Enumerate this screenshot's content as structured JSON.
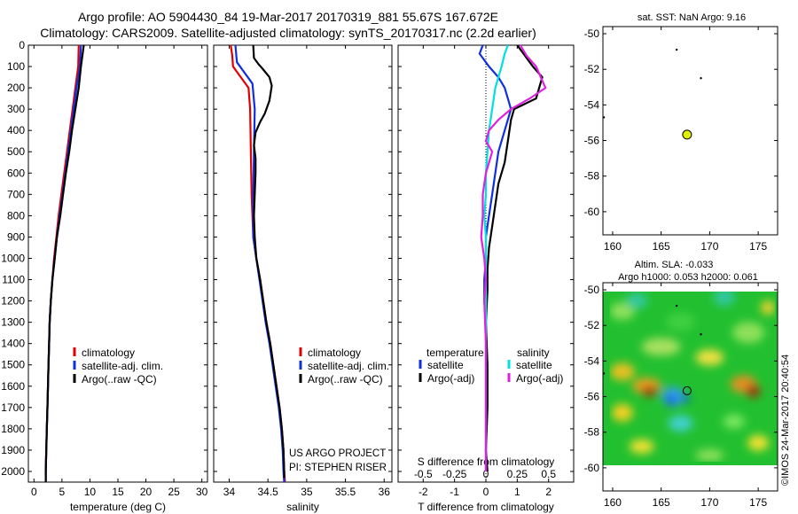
{
  "header": {
    "line1": "Argo profile: AO 5904430_84 19-Mar-2017 20170319_881 55.67S 167.672E",
    "line2": "Climatology: CARS2009. Satellite-adjusted climatology: synTS_20170317.nc (2.2d earlier)"
  },
  "credits": {
    "project": "US ARGO PROJECT",
    "pi": "PI: STEPHEN RISER",
    "imos_stamp": "©IMOS 24-Mar-2017 20:40:54"
  },
  "colors": {
    "climatology": "#e00000",
    "satellite": "#1030e0",
    "argo": "#000000",
    "satellite_salinity": "#00e0e0",
    "argo_salinity": "#e020e0",
    "marker": "#e0f000"
  },
  "chart_data": [
    {
      "type": "line",
      "panel": "temperature",
      "xlabel": "temperature (deg C)",
      "ylabel": "",
      "xlim": [
        -1,
        31
      ],
      "ylim": [
        2050,
        0
      ],
      "xticks": [
        "0",
        "5",
        "10",
        "15",
        "20",
        "25",
        "30"
      ],
      "yticks": [
        "0",
        "100",
        "200",
        "300",
        "400",
        "500",
        "600",
        "700",
        "800",
        "900",
        "1000",
        "1100",
        "1200",
        "1300",
        "1400",
        "1500",
        "1600",
        "1700",
        "1800",
        "1900",
        "2000"
      ],
      "legend": [
        "climatology",
        "satellite-adj. clim.",
        "Argo(..raw -QC)"
      ],
      "series": [
        {
          "name": "climatology",
          "color": "#e00000",
          "points": [
            [
              8.0,
              0
            ],
            [
              7.9,
              100
            ],
            [
              7.4,
              200
            ],
            [
              6.9,
              300
            ],
            [
              6.4,
              400
            ],
            [
              5.9,
              500
            ],
            [
              5.4,
              600
            ],
            [
              4.9,
              700
            ],
            [
              4.4,
              800
            ],
            [
              4.0,
              900
            ],
            [
              3.6,
              1000
            ],
            [
              3.3,
              1100
            ],
            [
              3.0,
              1200
            ],
            [
              2.8,
              1300
            ],
            [
              2.7,
              1400
            ],
            [
              2.6,
              1500
            ],
            [
              2.5,
              1600
            ],
            [
              2.4,
              1700
            ],
            [
              2.3,
              1800
            ],
            [
              2.2,
              1900
            ],
            [
              2.1,
              2000
            ],
            [
              2.1,
              2050
            ]
          ]
        },
        {
          "name": "satellite-adj. clim.",
          "color": "#1030e0",
          "points": [
            [
              8.4,
              0
            ],
            [
              8.2,
              100
            ],
            [
              7.6,
              200
            ],
            [
              7.1,
              300
            ],
            [
              6.6,
              400
            ],
            [
              6.1,
              500
            ],
            [
              5.6,
              600
            ],
            [
              5.1,
              700
            ],
            [
              4.6,
              800
            ],
            [
              4.1,
              900
            ],
            [
              3.7,
              1000
            ],
            [
              3.3,
              1100
            ],
            [
              3.0,
              1200
            ],
            [
              2.8,
              1300
            ],
            [
              2.7,
              1400
            ],
            [
              2.6,
              1500
            ],
            [
              2.5,
              1600
            ],
            [
              2.4,
              1700
            ],
            [
              2.3,
              1800
            ],
            [
              2.2,
              1900
            ],
            [
              2.1,
              2000
            ],
            [
              2.1,
              2050
            ]
          ]
        },
        {
          "name": "Argo(..raw -QC)",
          "color": "#000000",
          "points": [
            [
              8.9,
              0
            ],
            [
              8.6,
              60
            ],
            [
              8.4,
              100
            ],
            [
              8.0,
              200
            ],
            [
              7.4,
              300
            ],
            [
              6.8,
              400
            ],
            [
              6.3,
              500
            ],
            [
              5.7,
              600
            ],
            [
              5.2,
              700
            ],
            [
              4.7,
              800
            ],
            [
              4.1,
              900
            ],
            [
              3.7,
              1000
            ],
            [
              3.3,
              1100
            ],
            [
              3.0,
              1200
            ],
            [
              2.8,
              1300
            ],
            [
              2.7,
              1400
            ],
            [
              2.6,
              1500
            ],
            [
              2.5,
              1600
            ],
            [
              2.4,
              1700
            ],
            [
              2.3,
              1800
            ],
            [
              2.2,
              1900
            ],
            [
              2.1,
              2000
            ],
            [
              2.1,
              2050
            ]
          ]
        }
      ]
    },
    {
      "type": "line",
      "panel": "salinity",
      "xlabel": "salinity",
      "ylabel": "",
      "xlim": [
        33.8,
        36.1
      ],
      "ylim": [
        2050,
        0
      ],
      "xticks": [
        "34",
        "34.5",
        "35",
        "35.5",
        "36"
      ],
      "legend": [
        "climatology",
        "satellite-adj. clim.",
        "Argo(..raw -QC)"
      ],
      "series": [
        {
          "name": "climatology",
          "color": "#e00000",
          "points": [
            [
              34.02,
              0
            ],
            [
              34.04,
              50
            ],
            [
              34.05,
              100
            ],
            [
              34.15,
              150
            ],
            [
              34.25,
              200
            ],
            [
              34.27,
              300
            ],
            [
              34.28,
              500
            ],
            [
              34.29,
              700
            ],
            [
              34.3,
              800
            ],
            [
              34.31,
              900
            ],
            [
              34.35,
              1000
            ],
            [
              34.4,
              1100
            ],
            [
              34.44,
              1200
            ],
            [
              34.48,
              1300
            ],
            [
              34.53,
              1400
            ],
            [
              34.57,
              1500
            ],
            [
              34.61,
              1600
            ],
            [
              34.65,
              1700
            ],
            [
              34.68,
              1800
            ],
            [
              34.7,
              1900
            ],
            [
              34.71,
              2000
            ],
            [
              34.72,
              2050
            ]
          ]
        },
        {
          "name": "satellite-adj. clim.",
          "color": "#1030e0",
          "points": [
            [
              34.08,
              0
            ],
            [
              34.1,
              80
            ],
            [
              34.2,
              130
            ],
            [
              34.3,
              180
            ],
            [
              34.33,
              300
            ],
            [
              34.32,
              500
            ],
            [
              34.31,
              700
            ],
            [
              34.31,
              900
            ],
            [
              34.35,
              1000
            ],
            [
              34.39,
              1100
            ],
            [
              34.43,
              1200
            ],
            [
              34.47,
              1300
            ],
            [
              34.52,
              1400
            ],
            [
              34.56,
              1500
            ],
            [
              34.6,
              1600
            ],
            [
              34.64,
              1700
            ],
            [
              34.67,
              1800
            ],
            [
              34.69,
              1900
            ],
            [
              34.7,
              2000
            ],
            [
              34.71,
              2050
            ]
          ]
        },
        {
          "name": "Argo(..raw -QC)",
          "color": "#000000",
          "points": [
            [
              34.31,
              0
            ],
            [
              34.32,
              60
            ],
            [
              34.38,
              90
            ],
            [
              34.43,
              110
            ],
            [
              34.52,
              150
            ],
            [
              34.55,
              190
            ],
            [
              34.52,
              260
            ],
            [
              34.46,
              320
            ],
            [
              34.4,
              360
            ],
            [
              34.34,
              410
            ],
            [
              34.32,
              470
            ],
            [
              34.34,
              530
            ],
            [
              34.34,
              600
            ],
            [
              34.33,
              700
            ],
            [
              34.32,
              800
            ],
            [
              34.33,
              900
            ],
            [
              34.35,
              1000
            ],
            [
              34.4,
              1100
            ],
            [
              34.44,
              1200
            ],
            [
              34.48,
              1300
            ],
            [
              34.53,
              1400
            ],
            [
              34.57,
              1500
            ],
            [
              34.61,
              1600
            ],
            [
              34.65,
              1700
            ],
            [
              34.68,
              1800
            ],
            [
              34.7,
              1900
            ],
            [
              34.71,
              2000
            ],
            [
              34.71,
              2030
            ]
          ]
        }
      ]
    },
    {
      "type": "line",
      "panel": "difference from climatology",
      "xlabel": "T difference from climatology",
      "xlabel_top": "S difference from climatology",
      "xlim": [
        -2.8,
        2.8
      ],
      "ylim": [
        2050,
        0
      ],
      "xticks": [
        "-2",
        "-1",
        "0",
        "1",
        "2"
      ],
      "xticks_top": [
        "-0.5",
        "-0.25",
        "0",
        "0.25",
        "0.5"
      ],
      "legend_temperature_title": "temperature",
      "legend_salinity_title": "salinity",
      "legend": [
        "satellite",
        "Argo(-adj)",
        "satellite",
        "Argo(-adj)"
      ],
      "series": [
        {
          "name": "temperature satellite",
          "color": "#1030e0",
          "points": [
            [
              -0.1,
              0
            ],
            [
              -0.2,
              40
            ],
            [
              0.1,
              100
            ],
            [
              0.4,
              150
            ],
            [
              0.6,
              200
            ],
            [
              0.8,
              300
            ],
            [
              0.6,
              400
            ],
            [
              0.4,
              500
            ],
            [
              0.3,
              600
            ],
            [
              0.2,
              700
            ],
            [
              0.1,
              800
            ],
            [
              0.0,
              900
            ],
            [
              0.0,
              1000
            ],
            [
              -0.05,
              1100
            ],
            [
              -0.05,
              1200
            ],
            [
              0.0,
              1300
            ],
            [
              0.0,
              1500
            ],
            [
              0.0,
              1700
            ],
            [
              0.0,
              1900
            ],
            [
              0.0,
              2000
            ]
          ]
        },
        {
          "name": "temperature Argo(-adj)",
          "color": "#000000",
          "points": [
            [
              1.0,
              0
            ],
            [
              1.2,
              40
            ],
            [
              1.5,
              100
            ],
            [
              1.8,
              150
            ],
            [
              1.6,
              250
            ],
            [
              0.9,
              300
            ],
            [
              0.8,
              350
            ],
            [
              0.7,
              450
            ],
            [
              0.6,
              550
            ],
            [
              0.4,
              650
            ],
            [
              0.3,
              750
            ],
            [
              0.2,
              850
            ],
            [
              0.1,
              950
            ],
            [
              0.05,
              1050
            ],
            [
              0.05,
              1150
            ],
            [
              0.0,
              1300
            ],
            [
              0.05,
              1500
            ],
            [
              0.05,
              1700
            ],
            [
              0.0,
              1900
            ],
            [
              0.05,
              2000
            ]
          ]
        },
        {
          "name": "salinity satellite",
          "color": "#00e0e0",
          "points": [
            [
              0.7,
              0
            ],
            [
              0.6,
              40
            ],
            [
              0.5,
              100
            ],
            [
              0.3,
              200
            ],
            [
              0.2,
              300
            ],
            [
              0.1,
              400
            ],
            [
              0.05,
              500
            ],
            [
              0.0,
              600
            ],
            [
              0.0,
              700
            ],
            [
              -0.05,
              800
            ],
            [
              0.0,
              900
            ],
            [
              0.0,
              1000
            ],
            [
              0.0,
              1100
            ],
            [
              0.0,
              1200
            ],
            [
              0.0,
              1400
            ],
            [
              0.0,
              1600
            ],
            [
              0.0,
              1800
            ],
            [
              0.0,
              2000
            ]
          ]
        },
        {
          "name": "salinity Argo(-adj)",
          "color": "#e020e0",
          "points": [
            [
              1.1,
              0
            ],
            [
              1.3,
              50
            ],
            [
              1.6,
              100
            ],
            [
              1.9,
              200
            ],
            [
              1.4,
              250
            ],
            [
              0.8,
              300
            ],
            [
              0.4,
              350
            ],
            [
              0.1,
              400
            ],
            [
              0.0,
              450
            ],
            [
              0.2,
              500
            ],
            [
              0.0,
              600
            ],
            [
              -0.1,
              700
            ],
            [
              -0.1,
              800
            ],
            [
              -0.15,
              900
            ],
            [
              -0.05,
              1000
            ],
            [
              0.0,
              1100
            ],
            [
              -0.05,
              1200
            ],
            [
              0.0,
              1400
            ],
            [
              0.0,
              1600
            ],
            [
              0.0,
              1800
            ],
            [
              0.0,
              2000
            ]
          ]
        }
      ]
    },
    {
      "type": "scatter",
      "panel": "map-sst",
      "title": "sat. SST: NaN Argo: 9.16",
      "xlim": [
        159,
        177
      ],
      "ylim": [
        -61.3,
        -49.6
      ],
      "xticks": [
        "160",
        "165",
        "170",
        "175"
      ],
      "yticks": [
        "-50",
        "-52",
        "-54",
        "-56",
        "-58",
        "-60"
      ],
      "points": [
        [
          167.67,
          -55.67
        ]
      ]
    },
    {
      "type": "heatmap",
      "panel": "map-sla",
      "title_line1": "Altim. SLA: -0.033",
      "title_line2": "Argo h1000: 0.053 h2000: 0.061",
      "xlim": [
        159,
        177
      ],
      "ylim": [
        -61.3,
        -49.6
      ],
      "xticks": [
        "160",
        "165",
        "170",
        "175"
      ],
      "yticks": [
        "-50",
        "-52",
        "-54",
        "-56",
        "-58",
        "-60"
      ],
      "points": [
        [
          167.67,
          -55.67
        ]
      ]
    }
  ]
}
